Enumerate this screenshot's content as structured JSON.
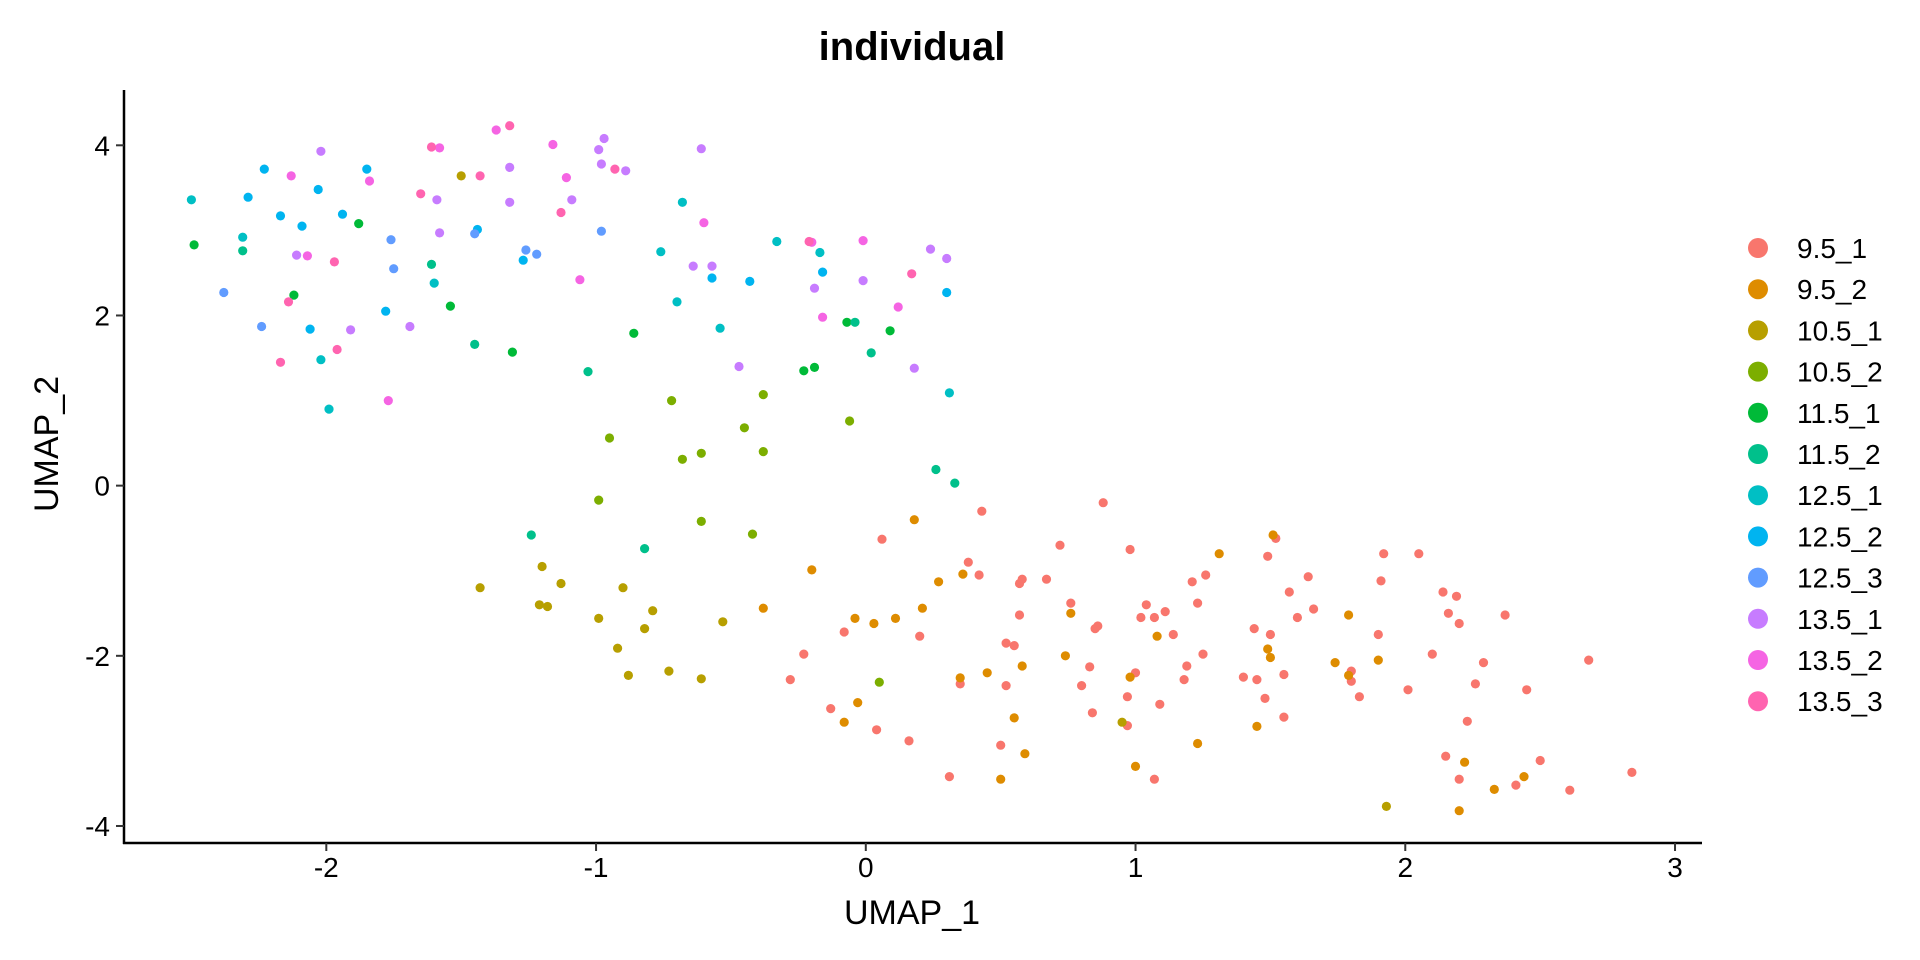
{
  "chart_data": {
    "type": "scatter",
    "title": "individual",
    "xlabel": "UMAP_1",
    "ylabel": "UMAP_2",
    "xlim": [
      -2.75,
      3.1
    ],
    "ylim": [
      -4.2,
      4.65
    ],
    "xticks": [
      -2,
      -1,
      0,
      1,
      2,
      3
    ],
    "yticks": [
      -4,
      -2,
      0,
      2,
      4
    ],
    "xtick_labels": [
      "-2",
      "-1",
      "0",
      "1",
      "2",
      "3"
    ],
    "ytick_labels": [
      "-4",
      "-2",
      "0",
      "2",
      "4"
    ],
    "grid": false,
    "legend_position": "right",
    "series": [
      {
        "name": "9.5_1",
        "color": "#F8766D",
        "points": [
          [
            0.06,
            -0.63
          ],
          [
            0.43,
            -0.3
          ],
          [
            0.38,
            -0.9
          ],
          [
            0.42,
            -1.05
          ],
          [
            0.57,
            -1.15
          ],
          [
            0.58,
            -1.1
          ],
          [
            0.57,
            -1.52
          ],
          [
            0.52,
            -1.85
          ],
          [
            0.55,
            -1.88
          ],
          [
            0.52,
            -2.35
          ],
          [
            0.35,
            -2.33
          ],
          [
            0.5,
            -3.05
          ],
          [
            0.31,
            -3.42
          ],
          [
            0.16,
            -3.0
          ],
          [
            0.04,
            -2.87
          ],
          [
            -0.13,
            -2.62
          ],
          [
            -0.28,
            -2.28
          ],
          [
            -0.23,
            -1.98
          ],
          [
            -0.08,
            -1.72
          ],
          [
            0.2,
            -1.77
          ],
          [
            0.67,
            -1.1
          ],
          [
            0.72,
            -0.7
          ],
          [
            0.76,
            -1.38
          ],
          [
            0.8,
            -2.35
          ],
          [
            0.83,
            -2.13
          ],
          [
            0.85,
            -1.68
          ],
          [
            0.86,
            -1.65
          ],
          [
            0.84,
            -2.67
          ],
          [
            0.88,
            -0.2
          ],
          [
            0.98,
            -0.75
          ],
          [
            1.0,
            -2.2
          ],
          [
            0.97,
            -2.48
          ],
          [
            0.97,
            -2.82
          ],
          [
            1.02,
            -1.55
          ],
          [
            1.04,
            -1.4
          ],
          [
            1.07,
            -1.55
          ],
          [
            1.07,
            -3.45
          ],
          [
            1.09,
            -2.57
          ],
          [
            1.11,
            -1.48
          ],
          [
            1.14,
            -1.75
          ],
          [
            1.19,
            -2.12
          ],
          [
            1.18,
            -2.28
          ],
          [
            1.21,
            -1.13
          ],
          [
            1.23,
            -1.38
          ],
          [
            1.25,
            -1.98
          ],
          [
            1.26,
            -1.05
          ],
          [
            1.4,
            -2.25
          ],
          [
            1.44,
            -1.68
          ],
          [
            1.45,
            -2.28
          ],
          [
            1.48,
            -2.5
          ],
          [
            1.49,
            -0.83
          ],
          [
            1.5,
            -1.75
          ],
          [
            1.52,
            -0.62
          ],
          [
            1.55,
            -2.22
          ],
          [
            1.55,
            -2.72
          ],
          [
            1.57,
            -1.25
          ],
          [
            1.6,
            -1.55
          ],
          [
            1.64,
            -1.07
          ],
          [
            1.66,
            -1.45
          ],
          [
            1.8,
            -2.18
          ],
          [
            1.8,
            -2.3
          ],
          [
            1.83,
            -2.48
          ],
          [
            1.9,
            -1.75
          ],
          [
            1.91,
            -1.12
          ],
          [
            1.92,
            -0.8
          ],
          [
            2.01,
            -2.4
          ],
          [
            2.05,
            -0.8
          ],
          [
            2.1,
            -1.98
          ],
          [
            2.14,
            -1.25
          ],
          [
            2.16,
            -1.5
          ],
          [
            2.15,
            -3.18
          ],
          [
            2.19,
            -1.3
          ],
          [
            2.2,
            -1.62
          ],
          [
            2.2,
            -3.45
          ],
          [
            2.23,
            -2.77
          ],
          [
            2.26,
            -2.33
          ],
          [
            2.29,
            -2.08
          ],
          [
            2.37,
            -1.52
          ],
          [
            2.41,
            -3.52
          ],
          [
            2.45,
            -2.4
          ],
          [
            2.5,
            -3.23
          ],
          [
            2.61,
            -3.58
          ],
          [
            2.68,
            -2.05
          ],
          [
            2.84,
            -3.37
          ]
        ]
      },
      {
        "name": "9.5_2",
        "color": "#DE8C00",
        "points": [
          [
            0.18,
            -0.4
          ],
          [
            0.27,
            -1.13
          ],
          [
            0.36,
            -1.04
          ],
          [
            0.45,
            -2.2
          ],
          [
            0.35,
            -2.26
          ],
          [
            0.55,
            -2.73
          ],
          [
            0.5,
            -3.45
          ],
          [
            0.59,
            -3.15
          ],
          [
            0.58,
            -2.12
          ],
          [
            0.74,
            -2.0
          ],
          [
            0.76,
            -1.5
          ],
          [
            0.98,
            -2.25
          ],
          [
            1.0,
            -3.3
          ],
          [
            1.08,
            -1.77
          ],
          [
            1.23,
            -3.03
          ],
          [
            1.31,
            -0.8
          ],
          [
            1.45,
            -2.83
          ],
          [
            1.49,
            -1.92
          ],
          [
            1.5,
            -2.02
          ],
          [
            1.51,
            -0.58
          ],
          [
            1.74,
            -2.08
          ],
          [
            1.79,
            -1.52
          ],
          [
            1.79,
            -2.23
          ],
          [
            1.9,
            -2.05
          ],
          [
            2.2,
            -3.82
          ],
          [
            2.22,
            -3.25
          ],
          [
            2.33,
            -3.57
          ],
          [
            2.44,
            -3.42
          ],
          [
            -0.04,
            -1.56
          ],
          [
            -0.08,
            -2.78
          ],
          [
            -0.03,
            -2.55
          ],
          [
            0.03,
            -1.62
          ],
          [
            0.11,
            -1.56
          ],
          [
            0.21,
            -1.44
          ],
          [
            -0.2,
            -0.99
          ],
          [
            -0.38,
            -1.44
          ]
        ]
      },
      {
        "name": "10.5_1",
        "color": "#B79F00",
        "points": [
          [
            -1.43,
            -1.2
          ],
          [
            -1.2,
            -0.95
          ],
          [
            -1.21,
            -1.4
          ],
          [
            -1.18,
            -1.42
          ],
          [
            -1.13,
            -1.15
          ],
          [
            -0.99,
            -1.56
          ],
          [
            -0.92,
            -1.91
          ],
          [
            -0.88,
            -2.23
          ],
          [
            -0.9,
            -1.2
          ],
          [
            -0.82,
            -1.68
          ],
          [
            -0.79,
            -1.47
          ],
          [
            -0.73,
            -2.18
          ],
          [
            -0.61,
            -2.27
          ],
          [
            -0.53,
            -1.6
          ],
          [
            -1.5,
            3.64
          ],
          [
            1.93,
            -3.77
          ],
          [
            0.95,
            -2.78
          ]
        ]
      },
      {
        "name": "10.5_2",
        "color": "#7CAE00",
        "points": [
          [
            -0.99,
            -0.17
          ],
          [
            -0.95,
            0.56
          ],
          [
            -0.72,
            1.0
          ],
          [
            -0.68,
            0.31
          ],
          [
            -0.61,
            0.38
          ],
          [
            -0.61,
            -0.42
          ],
          [
            -0.45,
            0.68
          ],
          [
            -0.42,
            -0.57
          ],
          [
            -0.38,
            1.07
          ],
          [
            -0.38,
            0.4
          ],
          [
            -0.06,
            0.76
          ],
          [
            0.05,
            -2.31
          ]
        ]
      },
      {
        "name": "11.5_1",
        "color": "#00BA38",
        "points": [
          [
            -2.49,
            2.83
          ],
          [
            -2.12,
            2.24
          ],
          [
            -1.88,
            3.08
          ],
          [
            -1.54,
            2.11
          ],
          [
            -1.31,
            1.57
          ],
          [
            -0.86,
            1.79
          ],
          [
            -0.23,
            1.35
          ],
          [
            -0.19,
            1.39
          ],
          [
            -0.07,
            1.92
          ],
          [
            0.09,
            1.82
          ]
        ]
      },
      {
        "name": "11.5_2",
        "color": "#00C08B",
        "points": [
          [
            -2.31,
            2.76
          ],
          [
            -1.61,
            2.6
          ],
          [
            -1.45,
            1.66
          ],
          [
            -1.03,
            1.34
          ],
          [
            -1.24,
            -0.58
          ],
          [
            -0.82,
            -0.74
          ],
          [
            0.02,
            1.56
          ],
          [
            0.26,
            0.19
          ],
          [
            0.33,
            0.03
          ],
          [
            -0.04,
            1.92
          ]
        ]
      },
      {
        "name": "12.5_1",
        "color": "#00BFC4",
        "points": [
          [
            -2.5,
            3.36
          ],
          [
            -2.31,
            2.92
          ],
          [
            -2.02,
            1.48
          ],
          [
            -1.99,
            0.9
          ],
          [
            -1.6,
            2.38
          ],
          [
            -0.76,
            2.75
          ],
          [
            -0.7,
            2.16
          ],
          [
            -0.68,
            3.33
          ],
          [
            -0.54,
            1.85
          ],
          [
            -0.33,
            2.87
          ],
          [
            -0.17,
            2.74
          ],
          [
            0.31,
            1.09
          ]
        ]
      },
      {
        "name": "12.5_2",
        "color": "#00B4F0",
        "points": [
          [
            -2.29,
            3.39
          ],
          [
            -2.23,
            3.72
          ],
          [
            -2.17,
            3.17
          ],
          [
            -2.09,
            3.05
          ],
          [
            -2.06,
            1.84
          ],
          [
            -2.03,
            3.48
          ],
          [
            -1.94,
            3.19
          ],
          [
            -1.85,
            3.72
          ],
          [
            -1.78,
            2.05
          ],
          [
            -1.44,
            3.01
          ],
          [
            -1.27,
            2.65
          ],
          [
            -0.57,
            2.44
          ],
          [
            -0.43,
            2.4
          ],
          [
            -0.16,
            2.51
          ],
          [
            0.3,
            2.27
          ]
        ]
      },
      {
        "name": "12.5_3",
        "color": "#619CFF",
        "points": [
          [
            -2.38,
            2.27
          ],
          [
            -2.24,
            1.87
          ],
          [
            -1.76,
            2.89
          ],
          [
            -1.75,
            2.55
          ],
          [
            -1.45,
            2.96
          ],
          [
            -1.26,
            2.77
          ],
          [
            -1.22,
            2.72
          ],
          [
            -0.98,
            2.99
          ]
        ]
      },
      {
        "name": "13.5_1",
        "color": "#C77CFF",
        "points": [
          [
            -2.11,
            2.71
          ],
          [
            -2.02,
            3.93
          ],
          [
            -1.91,
            1.83
          ],
          [
            -1.69,
            1.87
          ],
          [
            -1.59,
            3.36
          ],
          [
            -1.58,
            2.97
          ],
          [
            -1.32,
            3.33
          ],
          [
            -1.32,
            3.74
          ],
          [
            -1.09,
            3.36
          ],
          [
            -0.99,
            3.95
          ],
          [
            -0.98,
            3.78
          ],
          [
            -0.97,
            4.08
          ],
          [
            -0.89,
            3.7
          ],
          [
            -0.64,
            2.58
          ],
          [
            -0.61,
            3.96
          ],
          [
            -0.57,
            2.58
          ],
          [
            -0.47,
            1.4
          ],
          [
            -0.19,
            2.32
          ],
          [
            -0.01,
            2.41
          ],
          [
            0.18,
            1.38
          ],
          [
            0.24,
            2.78
          ],
          [
            0.3,
            2.67
          ]
        ]
      },
      {
        "name": "13.5_2",
        "color": "#F564E3",
        "points": [
          [
            -2.13,
            3.64
          ],
          [
            -2.07,
            2.7
          ],
          [
            -1.84,
            3.58
          ],
          [
            -1.77,
            1.0
          ],
          [
            -1.58,
            3.97
          ],
          [
            -1.37,
            4.18
          ],
          [
            -1.16,
            4.01
          ],
          [
            -1.11,
            3.62
          ],
          [
            -1.06,
            2.42
          ],
          [
            -0.6,
            3.09
          ],
          [
            -0.2,
            2.86
          ],
          [
            -0.16,
            1.98
          ],
          [
            -0.01,
            2.88
          ],
          [
            0.12,
            2.1
          ]
        ]
      },
      {
        "name": "13.5_3",
        "color": "#FF64B0",
        "points": [
          [
            -2.17,
            1.45
          ],
          [
            -2.14,
            2.16
          ],
          [
            -1.97,
            2.63
          ],
          [
            -1.96,
            1.6
          ],
          [
            -1.65,
            3.43
          ],
          [
            -1.61,
            3.98
          ],
          [
            -1.43,
            3.64
          ],
          [
            -1.32,
            4.23
          ],
          [
            -1.13,
            3.21
          ],
          [
            -0.93,
            3.72
          ],
          [
            -0.21,
            2.87
          ],
          [
            0.17,
            2.49
          ]
        ]
      }
    ]
  }
}
